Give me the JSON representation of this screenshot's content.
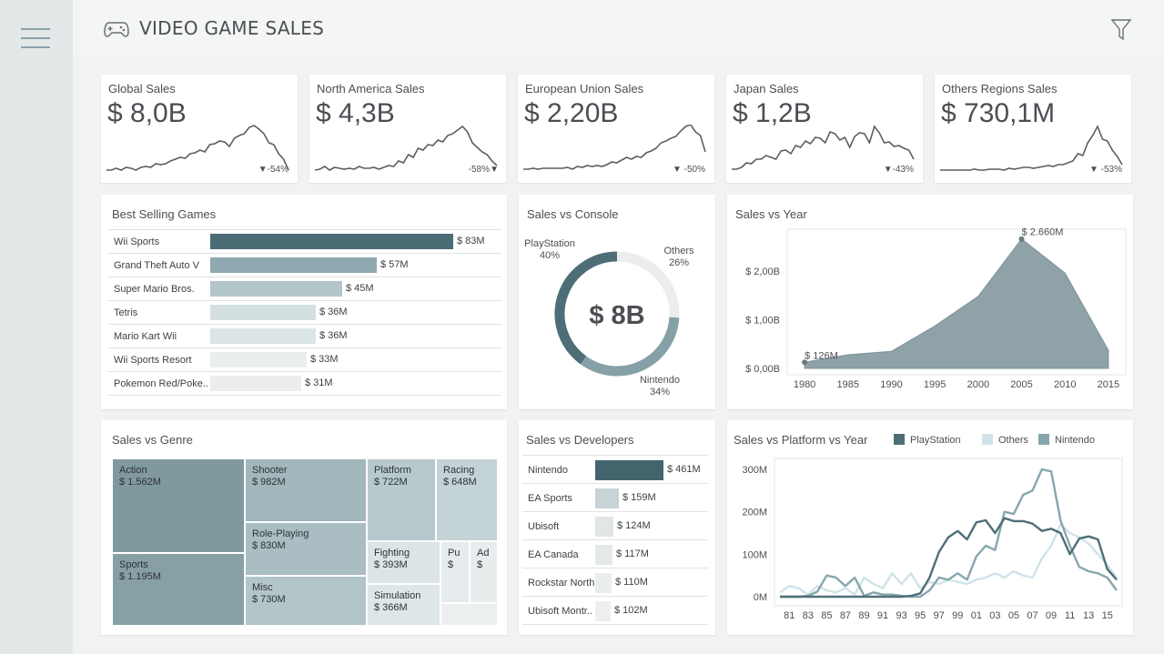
{
  "app": {
    "title": "VIDEO GAME SALES"
  },
  "kpis": [
    {
      "title": "Global Sales",
      "value": "$ 8,0B",
      "delta": "▼-54%"
    },
    {
      "title": "North America Sales",
      "value": "$ 4,3B",
      "delta": "-58%",
      "delta_marker": "▼"
    },
    {
      "title": "European Union Sales",
      "value": "$ 2,20B",
      "delta": "▼ -50%"
    },
    {
      "title": "Japan Sales",
      "value": "$ 1,2B",
      "delta": "▼-43%"
    },
    {
      "title": "Others Regions Sales",
      "value": "$ 730,1M",
      "delta": "▼ -53%"
    }
  ],
  "panels": {
    "best_selling": "Best Selling Games",
    "console": "Sales vs Console",
    "year": "Sales vs Year",
    "genre": "Sales vs Genre",
    "developers": "Sales vs Developers",
    "platform_year": "Sales vs Platform vs Year"
  },
  "best_selling_games": [
    {
      "name": "Wii Sports",
      "label": "$ 83M",
      "value": 83,
      "color": "#4a6c75"
    },
    {
      "name": "Grand Theft Auto V",
      "label": "$ 57M",
      "value": 57,
      "color": "#8fa9b0"
    },
    {
      "name": "Super Mario Bros.",
      "label": "$ 45M",
      "value": 45,
      "color": "#b3c5c9"
    },
    {
      "name": "Tetris",
      "label": "$ 36M",
      "value": 36,
      "color": "#d3dfe1"
    },
    {
      "name": "Mario Kart Wii",
      "label": "$ 36M",
      "value": 36,
      "color": "#dbe5e6"
    },
    {
      "name": "Wii Sports Resort",
      "label": "$ 33M",
      "value": 33,
      "color": "#e9eeef"
    },
    {
      "name": "Pokemon Red/Poke..",
      "label": "$ 31M",
      "value": 31,
      "color": "#eceeee"
    }
  ],
  "console": {
    "center_label": "$ 8B",
    "segments": [
      {
        "name": "PlayStation",
        "pct_label": "40%",
        "value": 40,
        "color": "#4d6e77"
      },
      {
        "name": "Nintendo",
        "pct_label": "34%",
        "value": 34,
        "color": "#86a0a7"
      },
      {
        "name": "Others",
        "pct_label": "26%",
        "value": 26,
        "color": "#eceeee"
      }
    ]
  },
  "developers": [
    {
      "name": "Nintendo",
      "label": "$ 461M",
      "value": 461,
      "color": "#43646d"
    },
    {
      "name": "EA Sports",
      "label": "$ 159M",
      "value": 159,
      "color": "#c7d3d6"
    },
    {
      "name": "Ubisoft",
      "label": "$ 124M",
      "value": 124,
      "color": "#e1e6e7"
    },
    {
      "name": "EA Canada",
      "label": "$ 117M",
      "value": 117,
      "color": "#e5e9ea"
    },
    {
      "name": "Rockstar North",
      "label": "$ 110M",
      "value": 110,
      "color": "#eaedee"
    },
    {
      "name": "Ubisoft Montr..",
      "label": "$ 102M",
      "value": 102,
      "color": "#eceeef"
    }
  ],
  "genres": [
    {
      "name": "Action",
      "label": "$ 1.562M",
      "color": "#7f999f"
    },
    {
      "name": "Sports",
      "label": "$ 1.195M",
      "color": "#87a0a6"
    },
    {
      "name": "Shooter",
      "label": "$ 982M",
      "color": "#a1b7bc"
    },
    {
      "name": "Role-Playing",
      "label": "$ 830M",
      "color": "#a9bdc2"
    },
    {
      "name": "Misc",
      "label": "$ 730M",
      "color": "#b2c5c9"
    },
    {
      "name": "Platform",
      "label": "$ 722M",
      "color": "#b7c9cd"
    },
    {
      "name": "Racing",
      "label": "$ 648M",
      "color": "#c3d3d6"
    },
    {
      "name": "Fighting",
      "label": "$ 393M",
      "color": "#dbe4e6"
    },
    {
      "name": "Simulation",
      "label": "$ 366M",
      "color": "#dde6e8"
    },
    {
      "name": "Pu",
      "label": "$",
      "color": "#e6ecee"
    },
    {
      "name": "Ad",
      "label": "$",
      "color": "#e7eced"
    },
    {
      "name": "",
      "label": "",
      "color": "#eceff0"
    }
  ],
  "chart_data": [
    {
      "type": "area",
      "title": "Sales vs Year",
      "x": [
        1980,
        1985,
        1990,
        1995,
        2000,
        2005,
        2010,
        2015
      ],
      "y": [
        126,
        280,
        350,
        870,
        1480,
        2660,
        1960,
        370
      ],
      "unit": "$M",
      "yticks": [
        "$ 0,00B",
        "$ 1,00B",
        "$ 2,00B"
      ],
      "ytick_values": [
        0,
        1000,
        2000
      ],
      "ylim": [
        0,
        2860
      ],
      "xlim": [
        1978,
        2017
      ],
      "annotations": [
        {
          "x": 1980,
          "label": "$ 126M"
        },
        {
          "x": 2005,
          "label": "$ 2.660M"
        }
      ],
      "color": "#8ea2a7",
      "grid": false
    },
    {
      "type": "line",
      "title": "Sales vs Platform vs Year",
      "x": [
        1980,
        1981,
        1982,
        1983,
        1984,
        1985,
        1986,
        1987,
        1988,
        1989,
        1990,
        1991,
        1992,
        1993,
        1994,
        1995,
        1996,
        1997,
        1998,
        1999,
        2000,
        2001,
        2002,
        2003,
        2004,
        2005,
        2006,
        2007,
        2008,
        2009,
        2010,
        2011,
        2012,
        2013,
        2014,
        2015,
        2016
      ],
      "xticks": [
        "81",
        "83",
        "85",
        "87",
        "89",
        "91",
        "93",
        "95",
        "97",
        "99",
        "01",
        "03",
        "05",
        "07",
        "09",
        "11",
        "13",
        "15"
      ],
      "xtick_values": [
        1981,
        1983,
        1985,
        1987,
        1989,
        1991,
        1993,
        1995,
        1997,
        1999,
        2001,
        2003,
        2005,
        2007,
        2009,
        2011,
        2013,
        2015
      ],
      "yticks": [
        "0M",
        "100M",
        "200M",
        "300M"
      ],
      "ytick_values": [
        0,
        100,
        200,
        300
      ],
      "ylim": [
        -10,
        315
      ],
      "legend_position": "top",
      "series": [
        {
          "name": "PlayStation",
          "color": "#4e6f78",
          "values": [
            0,
            0,
            0,
            0,
            0,
            0,
            0,
            0,
            0,
            0,
            0,
            0,
            0,
            0,
            2,
            8,
            45,
            105,
            140,
            155,
            135,
            175,
            180,
            150,
            185,
            178,
            178,
            172,
            155,
            160,
            150,
            100,
            137,
            142,
            135,
            65,
            40
          ]
        },
        {
          "name": "Others",
          "color": "#cfe3ea",
          "values": [
            10,
            25,
            20,
            5,
            25,
            15,
            10,
            20,
            5,
            45,
            30,
            20,
            55,
            30,
            55,
            20,
            35,
            30,
            40,
            35,
            30,
            40,
            45,
            55,
            45,
            60,
            50,
            45,
            90,
            120,
            170,
            150,
            140,
            125,
            100,
            75,
            45
          ]
        },
        {
          "name": "Nintendo",
          "color": "#86a6ad",
          "values": [
            0,
            0,
            0,
            2,
            12,
            50,
            45,
            25,
            45,
            2,
            10,
            5,
            5,
            2,
            0,
            0,
            15,
            45,
            40,
            55,
            40,
            95,
            120,
            110,
            200,
            195,
            240,
            250,
            300,
            295,
            180,
            120,
            70,
            60,
            55,
            45,
            15
          ]
        }
      ]
    }
  ]
}
